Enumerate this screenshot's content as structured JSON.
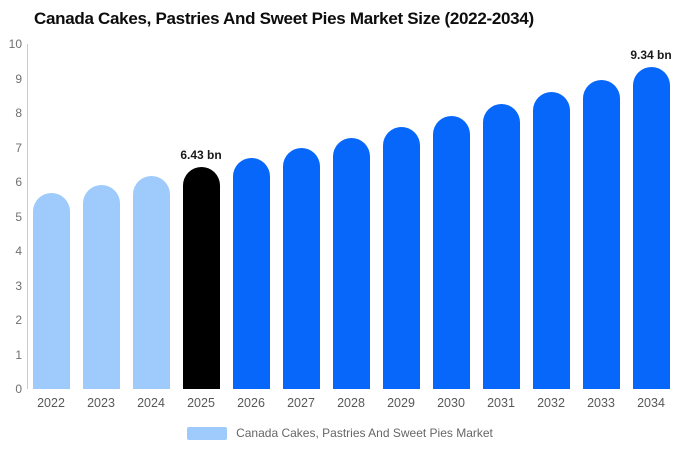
{
  "title": "Canada Cakes, Pastries And Sweet Pies Market Size (2022-2034)",
  "chart_data": {
    "type": "bar",
    "categories": [
      "2022",
      "2023",
      "2024",
      "2025",
      "2026",
      "2027",
      "2028",
      "2029",
      "2030",
      "2031",
      "2032",
      "2033",
      "2034"
    ],
    "values": [
      5.68,
      5.92,
      6.17,
      6.43,
      6.7,
      6.99,
      7.28,
      7.59,
      7.91,
      8.25,
      8.6,
      8.96,
      9.34
    ],
    "bar_color_roles": [
      "past",
      "past",
      "past",
      "current",
      "forecast",
      "forecast",
      "forecast",
      "forecast",
      "forecast",
      "forecast",
      "forecast",
      "forecast",
      "forecast"
    ],
    "colors": {
      "past": "#9ECBFC",
      "current": "#000000",
      "forecast": "#0667FA",
      "axis": "#CCCCCC",
      "tick_text": "#707070",
      "xlabel_text": "#595959",
      "annotation_text": "#1A1A1A"
    },
    "annotations": [
      {
        "index": 3,
        "text": "6.43 bn"
      },
      {
        "index": 12,
        "text": "9.34 bn"
      }
    ],
    "title": "Canada Cakes, Pastries And Sweet Pies Market Size (2022-2034)",
    "xlabel": "",
    "ylabel": "",
    "ylim": [
      0,
      10
    ],
    "yticks": [
      0,
      1,
      2,
      3,
      4,
      5,
      6,
      7,
      8,
      9,
      10
    ],
    "grid": false,
    "legend_position": "bottom"
  },
  "legend": {
    "label": "Canada Cakes, Pastries And Sweet Pies Market",
    "swatch_color": "#9ECBFC"
  }
}
